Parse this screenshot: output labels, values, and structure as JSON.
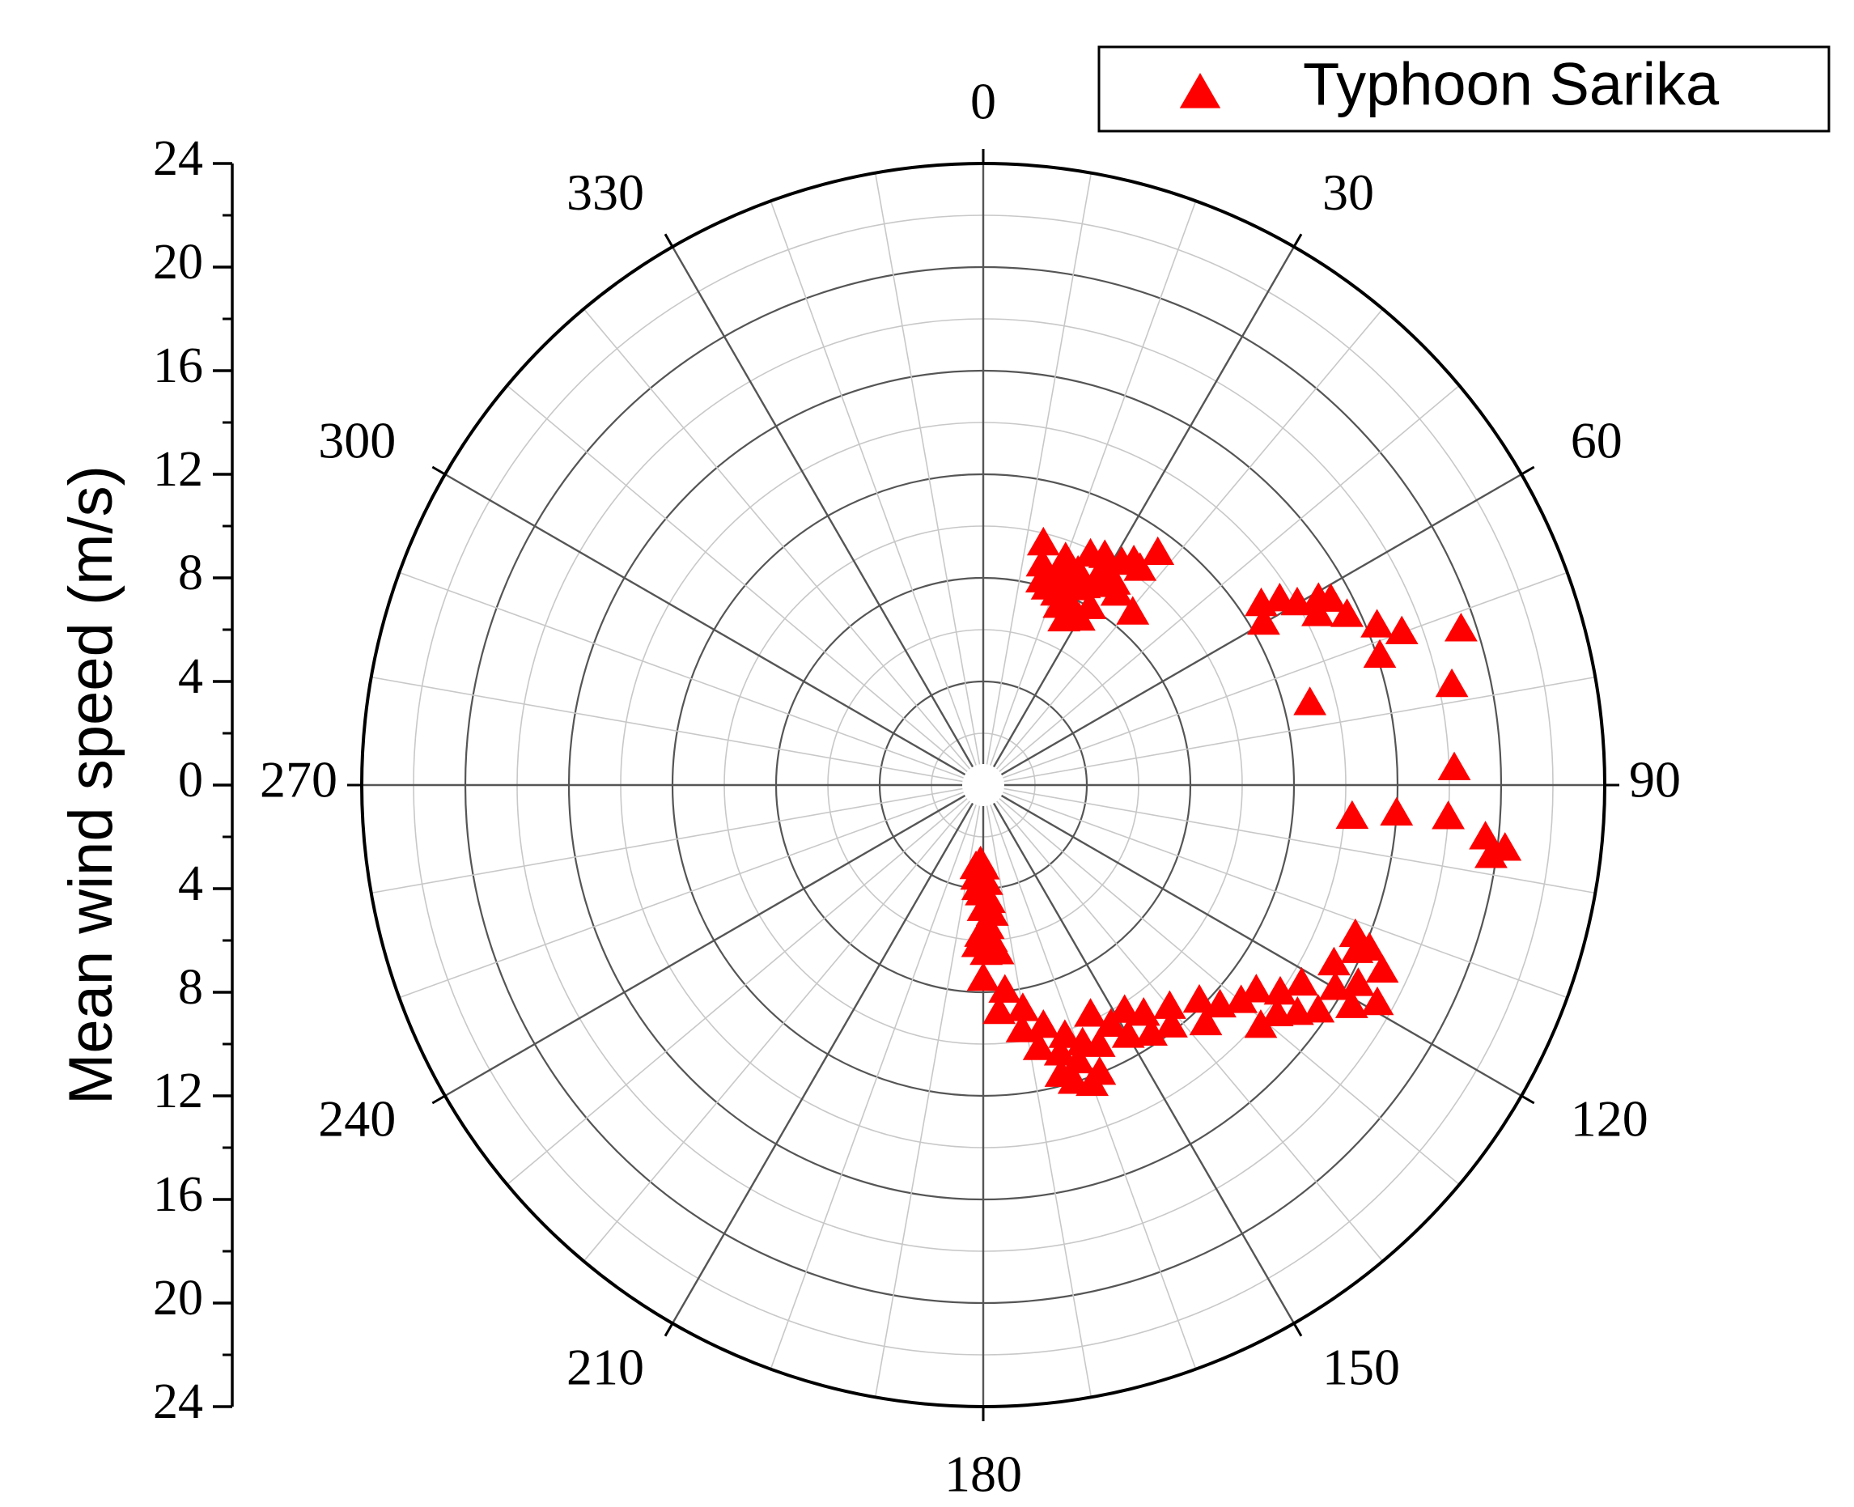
{
  "chart_data": {
    "type": "scatter",
    "coordinate_system": "polar",
    "angular_axis": {
      "direction": "clockwise",
      "zero_at": "top",
      "unit": "degrees",
      "tick_labels": [
        "0",
        "30",
        "60",
        "90",
        "120",
        "150",
        "180",
        "210",
        "240",
        "270",
        "300",
        "330"
      ]
    },
    "radial_axis": {
      "label": "Mean wind speed (m/s)",
      "range": [
        0,
        24
      ],
      "tick_labels": [
        "24",
        "20",
        "16",
        "12",
        "8",
        "4",
        "0",
        "4",
        "8",
        "12",
        "16",
        "20",
        "24"
      ],
      "rings": [
        4,
        8,
        12,
        16,
        20,
        24
      ],
      "minor_rings": [
        2,
        6,
        10,
        14,
        18,
        22
      ]
    },
    "grid": true,
    "legend_position": "top-right",
    "series": [
      {
        "name": "Typhoon Sarika",
        "marker": "triangle",
        "color": "#ff0000",
        "points": [
          {
            "theta": 14,
            "r": 9.6
          },
          {
            "theta": 15,
            "r": 8.8
          },
          {
            "theta": 16,
            "r": 8.2
          },
          {
            "theta": 18,
            "r": 8.0
          },
          {
            "theta": 20,
            "r": 9.3
          },
          {
            "theta": 20,
            "r": 8.5
          },
          {
            "theta": 21,
            "r": 7.9
          },
          {
            "theta": 22,
            "r": 8.8
          },
          {
            "theta": 23,
            "r": 7.5
          },
          {
            "theta": 24,
            "r": 9.0
          },
          {
            "theta": 24,
            "r": 8.3
          },
          {
            "theta": 25,
            "r": 9.8
          },
          {
            "theta": 26,
            "r": 7.7
          },
          {
            "theta": 26,
            "r": 7.1
          },
          {
            "theta": 27,
            "r": 8.6
          },
          {
            "theta": 28,
            "r": 10.0
          },
          {
            "theta": 29,
            "r": 9.5
          },
          {
            "theta": 30,
            "r": 7.4
          },
          {
            "theta": 30,
            "r": 8.9
          },
          {
            "theta": 31,
            "r": 8.0
          },
          {
            "theta": 32,
            "r": 10.1
          },
          {
            "theta": 33,
            "r": 9.3
          },
          {
            "theta": 34,
            "r": 10.4
          },
          {
            "theta": 35,
            "r": 9.0
          },
          {
            "theta": 36,
            "r": 10.3
          },
          {
            "theta": 37,
            "r": 11.2
          },
          {
            "theta": 41,
            "r": 8.8
          },
          {
            "theta": 57,
            "r": 12.8
          },
          {
            "theta": 58,
            "r": 13.5
          },
          {
            "theta": 60,
            "r": 12.5
          },
          {
            "theta": 60,
            "r": 14.0
          },
          {
            "theta": 61,
            "r": 14.8
          },
          {
            "theta": 62,
            "r": 15.2
          },
          {
            "theta": 63,
            "r": 14.5
          },
          {
            "theta": 65,
            "r": 15.5
          },
          {
            "theta": 68,
            "r": 16.4
          },
          {
            "theta": 70,
            "r": 17.2
          },
          {
            "theta": 72,
            "r": 16.1
          },
          {
            "theta": 76,
            "r": 13.0
          },
          {
            "theta": 72,
            "r": 19.4
          },
          {
            "theta": 78,
            "r": 18.5
          },
          {
            "theta": 88,
            "r": 18.2
          },
          {
            "theta": 95,
            "r": 14.3
          },
          {
            "theta": 94,
            "r": 16.0
          },
          {
            "theta": 94,
            "r": 18.0
          },
          {
            "theta": 96,
            "r": 19.5
          },
          {
            "theta": 97,
            "r": 20.3
          },
          {
            "theta": 98,
            "r": 19.8
          },
          {
            "theta": 112,
            "r": 15.5
          },
          {
            "theta": 113,
            "r": 16.2
          },
          {
            "theta": 114,
            "r": 15.8
          },
          {
            "theta": 115,
            "r": 17.0
          },
          {
            "theta": 117,
            "r": 15.2
          },
          {
            "theta": 118,
            "r": 16.4
          },
          {
            "theta": 119,
            "r": 17.4
          },
          {
            "theta": 120,
            "r": 15.7
          },
          {
            "theta": 121,
            "r": 16.6
          },
          {
            "theta": 122,
            "r": 14.5
          },
          {
            "theta": 124,
            "r": 15.6
          },
          {
            "theta": 125,
            "r": 14.0
          },
          {
            "theta": 126,
            "r": 15.0
          },
          {
            "theta": 127,
            "r": 13.2
          },
          {
            "theta": 128,
            "r": 14.4
          },
          {
            "theta": 130,
            "r": 13.0
          },
          {
            "theta": 131,
            "r": 14.2
          },
          {
            "theta": 133,
            "r": 12.5
          },
          {
            "theta": 135,
            "r": 11.8
          },
          {
            "theta": 137,
            "r": 12.6
          },
          {
            "theta": 140,
            "r": 11.2
          },
          {
            "theta": 142,
            "r": 11.8
          },
          {
            "theta": 145,
            "r": 10.8
          },
          {
            "theta": 146,
            "r": 11.6
          },
          {
            "theta": 148,
            "r": 10.3
          },
          {
            "theta": 150,
            "r": 11.2
          },
          {
            "theta": 152,
            "r": 10.5
          },
          {
            "theta": 155,
            "r": 9.8
          },
          {
            "theta": 156,
            "r": 11.0
          },
          {
            "theta": 158,
            "r": 12.0
          },
          {
            "theta": 159,
            "r": 10.7
          },
          {
            "theta": 160,
            "r": 12.3
          },
          {
            "theta": 161,
            "r": 11.3
          },
          {
            "theta": 162,
            "r": 10.2
          },
          {
            "theta": 163,
            "r": 12.0
          },
          {
            "theta": 164,
            "r": 10.8
          },
          {
            "theta": 165,
            "r": 11.6
          },
          {
            "theta": 166,
            "r": 9.6
          },
          {
            "theta": 168,
            "r": 10.4
          },
          {
            "theta": 170,
            "r": 8.8
          },
          {
            "theta": 171,
            "r": 9.6
          },
          {
            "theta": 174,
            "r": 8.0
          },
          {
            "theta": 175,
            "r": 6.5
          },
          {
            "theta": 176,
            "r": 8.8
          },
          {
            "theta": 176,
            "r": 5.0
          },
          {
            "theta": 177,
            "r": 4.5
          },
          {
            "theta": 177,
            "r": 6.0
          },
          {
            "theta": 178,
            "r": 3.8
          },
          {
            "theta": 178,
            "r": 5.5
          },
          {
            "theta": 179,
            "r": 6.5
          },
          {
            "theta": 180,
            "r": 3.2
          },
          {
            "theta": 180,
            "r": 4.8
          },
          {
            "theta": 180,
            "r": 7.5
          },
          {
            "theta": 181,
            "r": 4.2
          },
          {
            "theta": 181,
            "r": 5.8
          },
          {
            "theta": 182,
            "r": 3.0
          },
          {
            "theta": 182,
            "r": 6.2
          },
          {
            "theta": 183,
            "r": 4.0
          },
          {
            "theta": 184,
            "r": 3.6
          },
          {
            "theta": 185,
            "r": 3.2
          }
        ]
      }
    ]
  }
}
